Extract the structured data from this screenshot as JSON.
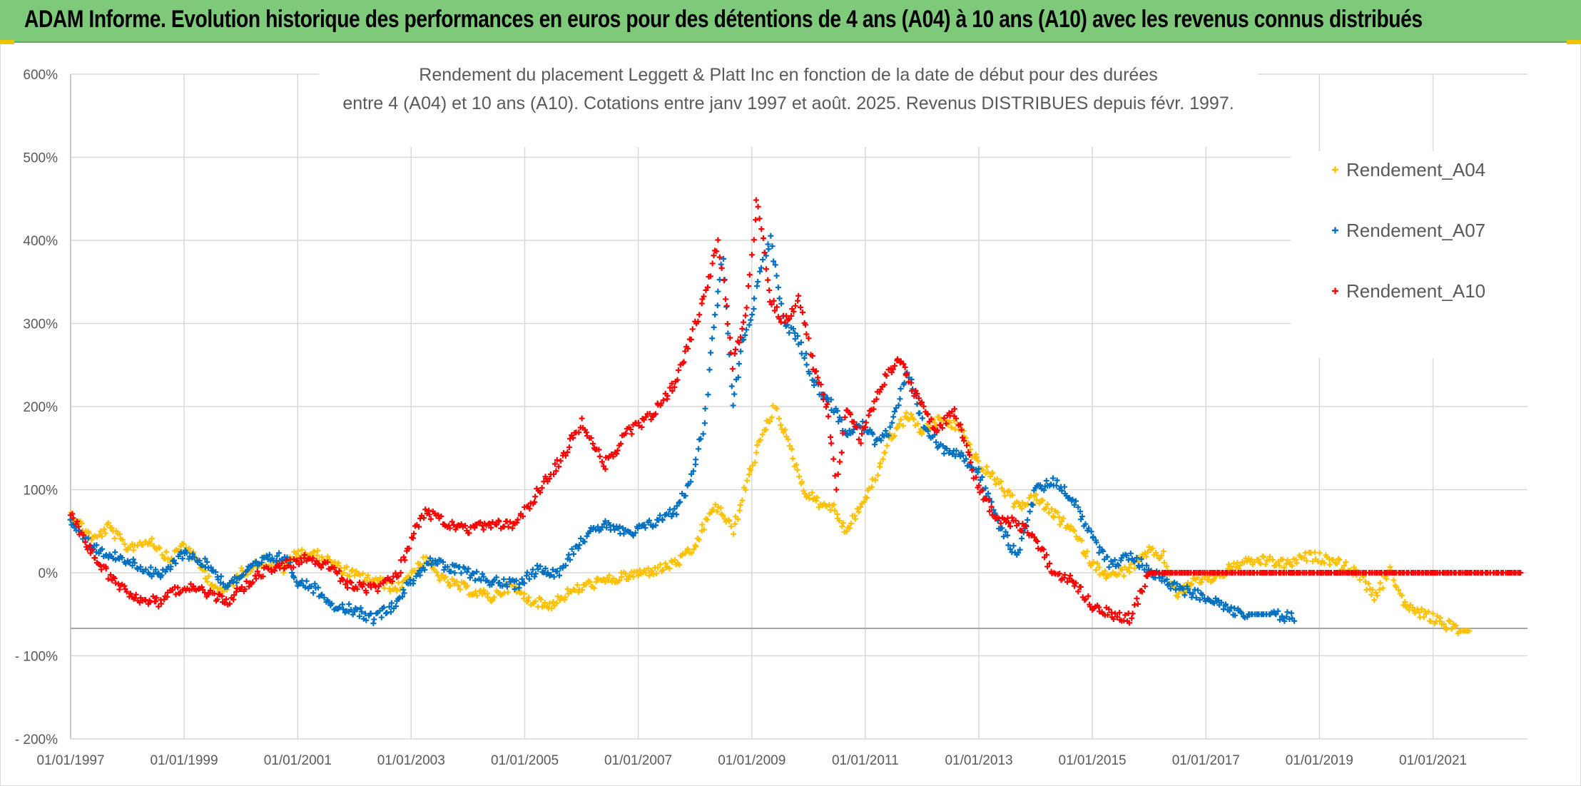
{
  "banner": {
    "title": "ADAM Informe. Evolution historique des performances en euros pour des détentions de 4 ans (A04) à 10 ans (A10) avec les revenus connus distribués"
  },
  "chart_data": {
    "type": "scatter",
    "title_line1": "Rendement du placement Leggett & Platt Inc en fonction de la date de début pour des durées",
    "title_line2": "entre 4 (A04) et 10 ans (A10). Cotations entre janv 1997 et août. 2025. Revenus DISTRIBUES depuis févr. 1997.",
    "xlabel": "",
    "ylabel": "",
    "x_range": [
      "1997-01-01",
      "2022-09-01"
    ],
    "ylim": [
      -200,
      600
    ],
    "y_ticks": [
      {
        "value": 600,
        "label": "600%"
      },
      {
        "value": 500,
        "label": "500%"
      },
      {
        "value": 400,
        "label": "400%"
      },
      {
        "value": 300,
        "label": "300%"
      },
      {
        "value": 200,
        "label": "200%"
      },
      {
        "value": 100,
        "label": "100%"
      },
      {
        "value": 0,
        "label": "0%"
      },
      {
        "value": -100,
        "label": "- 100%"
      },
      {
        "value": -200,
        "label": "- 200%"
      }
    ],
    "x_ticks": [
      "01/01/1997",
      "01/01/1999",
      "01/01/2001",
      "01/01/2003",
      "01/01/2005",
      "01/01/2007",
      "01/01/2009",
      "01/01/2011",
      "01/01/2013",
      "01/01/2015",
      "01/01/2017",
      "01/01/2019",
      "01/01/2021"
    ],
    "reference_line": -67,
    "grid": true,
    "legend_position": "top-right",
    "marker": "+",
    "series": [
      {
        "name": "Rendement_A04",
        "color": "#ffc000",
        "points": [
          [
            "1997-01-01",
            70
          ],
          [
            "1997-06-01",
            40
          ],
          [
            "1997-09-01",
            55
          ],
          [
            "1998-01-01",
            30
          ],
          [
            "1998-06-01",
            40
          ],
          [
            "1998-10-01",
            15
          ],
          [
            "1999-01-01",
            35
          ],
          [
            "1999-06-01",
            -5
          ],
          [
            "1999-09-01",
            -25
          ],
          [
            "2000-01-01",
            0
          ],
          [
            "2000-06-01",
            15
          ],
          [
            "2000-10-01",
            5
          ],
          [
            "2001-01-01",
            25
          ],
          [
            "2001-06-01",
            20
          ],
          [
            "2001-10-01",
            5
          ],
          [
            "2002-02-01",
            -5
          ],
          [
            "2002-06-01",
            -10
          ],
          [
            "2002-10-01",
            -20
          ],
          [
            "2003-01-01",
            0
          ],
          [
            "2003-04-01",
            15
          ],
          [
            "2003-08-01",
            -10
          ],
          [
            "2004-01-01",
            -20
          ],
          [
            "2004-06-01",
            -30
          ],
          [
            "2004-10-01",
            -15
          ],
          [
            "2005-01-01",
            -30
          ],
          [
            "2005-06-01",
            -40
          ],
          [
            "2005-10-01",
            -25
          ],
          [
            "2006-02-01",
            -15
          ],
          [
            "2006-06-01",
            -10
          ],
          [
            "2006-10-01",
            -5
          ],
          [
            "2007-02-01",
            0
          ],
          [
            "2007-06-01",
            5
          ],
          [
            "2007-10-01",
            15
          ],
          [
            "2008-01-01",
            30
          ],
          [
            "2008-04-01",
            70
          ],
          [
            "2008-06-01",
            80
          ],
          [
            "2008-09-01",
            50
          ],
          [
            "2008-12-01",
            110
          ],
          [
            "2009-03-01",
            160
          ],
          [
            "2009-06-01",
            200
          ],
          [
            "2009-09-01",
            150
          ],
          [
            "2009-12-01",
            100
          ],
          [
            "2010-03-01",
            85
          ],
          [
            "2010-06-01",
            80
          ],
          [
            "2010-09-01",
            50
          ],
          [
            "2010-12-01",
            80
          ],
          [
            "2011-03-01",
            110
          ],
          [
            "2011-06-01",
            160
          ],
          [
            "2011-10-01",
            190
          ],
          [
            "2012-01-01",
            170
          ],
          [
            "2012-05-01",
            185
          ],
          [
            "2012-09-01",
            175
          ],
          [
            "2013-01-01",
            130
          ],
          [
            "2013-05-01",
            110
          ],
          [
            "2013-09-01",
            80
          ],
          [
            "2014-01-01",
            90
          ],
          [
            "2014-05-01",
            70
          ],
          [
            "2014-09-01",
            50
          ],
          [
            "2015-01-01",
            10
          ],
          [
            "2015-05-01",
            -5
          ],
          [
            "2015-09-01",
            5
          ],
          [
            "2016-01-01",
            25
          ],
          [
            "2016-04-01",
            20
          ],
          [
            "2016-07-01",
            -30
          ],
          [
            "2016-10-01",
            -10
          ],
          [
            "2017-03-01",
            -5
          ],
          [
            "2017-08-01",
            10
          ],
          [
            "2018-01-01",
            15
          ],
          [
            "2018-06-01",
            10
          ],
          [
            "2018-11-01",
            20
          ],
          [
            "2019-04-01",
            15
          ],
          [
            "2019-09-01",
            0
          ],
          [
            "2020-01-01",
            -30
          ],
          [
            "2020-04-01",
            5
          ],
          [
            "2020-07-01",
            -40
          ],
          [
            "2020-11-01",
            -50
          ],
          [
            "2021-03-01",
            -60
          ],
          [
            "2021-07-01",
            -70
          ],
          [
            "2021-09-01",
            -70
          ]
        ]
      },
      {
        "name": "Rendement_A07",
        "color": "#0070c0",
        "points": [
          [
            "1997-01-01",
            60
          ],
          [
            "1997-06-01",
            30
          ],
          [
            "1997-10-01",
            20
          ],
          [
            "1998-03-01",
            10
          ],
          [
            "1998-08-01",
            -5
          ],
          [
            "1999-01-01",
            25
          ],
          [
            "1999-06-01",
            10
          ],
          [
            "1999-10-01",
            -15
          ],
          [
            "2000-02-01",
            0
          ],
          [
            "2000-06-01",
            15
          ],
          [
            "2000-10-01",
            20
          ],
          [
            "2001-01-01",
            -10
          ],
          [
            "2001-05-01",
            -20
          ],
          [
            "2001-09-01",
            -40
          ],
          [
            "2002-01-01",
            -45
          ],
          [
            "2002-05-01",
            -55
          ],
          [
            "2002-09-01",
            -40
          ],
          [
            "2003-01-01",
            -10
          ],
          [
            "2003-05-01",
            15
          ],
          [
            "2003-09-01",
            5
          ],
          [
            "2004-01-01",
            0
          ],
          [
            "2004-06-01",
            -10
          ],
          [
            "2004-11-01",
            -15
          ],
          [
            "2005-04-01",
            5
          ],
          [
            "2005-08-01",
            0
          ],
          [
            "2006-01-01",
            40
          ],
          [
            "2006-06-01",
            60
          ],
          [
            "2006-11-01",
            45
          ],
          [
            "2007-04-01",
            60
          ],
          [
            "2007-09-01",
            75
          ],
          [
            "2007-12-01",
            110
          ],
          [
            "2008-03-01",
            180
          ],
          [
            "2008-05-01",
            300
          ],
          [
            "2008-07-01",
            380
          ],
          [
            "2008-09-01",
            200
          ],
          [
            "2008-11-01",
            280
          ],
          [
            "2009-01-01",
            310
          ],
          [
            "2009-03-01",
            370
          ],
          [
            "2009-05-01",
            400
          ],
          [
            "2009-08-01",
            300
          ],
          [
            "2009-11-01",
            280
          ],
          [
            "2010-02-01",
            230
          ],
          [
            "2010-06-01",
            200
          ],
          [
            "2010-09-01",
            170
          ],
          [
            "2010-12-01",
            180
          ],
          [
            "2011-03-01",
            160
          ],
          [
            "2011-06-01",
            170
          ],
          [
            "2011-10-01",
            240
          ],
          [
            "2012-01-01",
            180
          ],
          [
            "2012-05-01",
            150
          ],
          [
            "2012-09-01",
            145
          ],
          [
            "2013-01-01",
            120
          ],
          [
            "2013-05-01",
            60
          ],
          [
            "2013-09-01",
            20
          ],
          [
            "2014-01-01",
            100
          ],
          [
            "2014-05-01",
            110
          ],
          [
            "2014-09-01",
            90
          ],
          [
            "2015-01-01",
            40
          ],
          [
            "2015-05-01",
            10
          ],
          [
            "2015-09-01",
            20
          ],
          [
            "2016-02-01",
            0
          ],
          [
            "2016-06-01",
            -15
          ],
          [
            "2016-10-01",
            -25
          ],
          [
            "2017-02-01",
            -30
          ],
          [
            "2017-06-01",
            -45
          ],
          [
            "2017-10-01",
            -50
          ],
          [
            "2018-03-01",
            -50
          ],
          [
            "2018-08-01",
            -55
          ]
        ]
      },
      {
        "name": "Rendement_A10",
        "color": "#ff0000",
        "points": [
          [
            "1997-01-01",
            70
          ],
          [
            "1997-06-01",
            20
          ],
          [
            "1997-10-01",
            -10
          ],
          [
            "1998-03-01",
            -30
          ],
          [
            "1998-08-01",
            -35
          ],
          [
            "1999-01-01",
            -15
          ],
          [
            "1999-06-01",
            -25
          ],
          [
            "1999-10-01",
            -35
          ],
          [
            "2000-03-01",
            -10
          ],
          [
            "2000-07-01",
            5
          ],
          [
            "2000-11-01",
            10
          ],
          [
            "2001-03-01",
            20
          ],
          [
            "2001-08-01",
            5
          ],
          [
            "2001-12-01",
            -15
          ],
          [
            "2002-05-01",
            -20
          ],
          [
            "2002-10-01",
            -5
          ],
          [
            "2003-01-01",
            40
          ],
          [
            "2003-04-01",
            75
          ],
          [
            "2003-08-01",
            60
          ],
          [
            "2004-01-01",
            50
          ],
          [
            "2004-06-01",
            60
          ],
          [
            "2004-11-01",
            55
          ],
          [
            "2005-04-01",
            100
          ],
          [
            "2005-08-01",
            130
          ],
          [
            "2006-01-01",
            180
          ],
          [
            "2006-06-01",
            130
          ],
          [
            "2006-11-01",
            170
          ],
          [
            "2007-04-01",
            190
          ],
          [
            "2007-09-01",
            230
          ],
          [
            "2007-12-01",
            280
          ],
          [
            "2008-03-01",
            330
          ],
          [
            "2008-06-01",
            400
          ],
          [
            "2008-09-01",
            250
          ],
          [
            "2008-12-01",
            320
          ],
          [
            "2009-02-01",
            450
          ],
          [
            "2009-05-01",
            330
          ],
          [
            "2009-08-01",
            300
          ],
          [
            "2009-11-01",
            330
          ],
          [
            "2010-02-01",
            250
          ],
          [
            "2010-05-01",
            200
          ],
          [
            "2010-07-01",
            100
          ],
          [
            "2010-09-01",
            200
          ],
          [
            "2010-12-01",
            160
          ],
          [
            "2011-04-01",
            220
          ],
          [
            "2011-08-01",
            260
          ],
          [
            "2011-12-01",
            210
          ],
          [
            "2012-04-01",
            170
          ],
          [
            "2012-08-01",
            195
          ],
          [
            "2013-01-01",
            100
          ],
          [
            "2013-05-01",
            65
          ],
          [
            "2013-09-01",
            60
          ],
          [
            "2014-01-01",
            40
          ],
          [
            "2014-05-01",
            0
          ],
          [
            "2014-09-01",
            -10
          ],
          [
            "2015-01-01",
            -40
          ],
          [
            "2015-05-01",
            -50
          ],
          [
            "2015-09-01",
            -55
          ],
          [
            "2016-01-01",
            0
          ],
          [
            "2018-01-01",
            0
          ],
          [
            "2020-01-01",
            0
          ],
          [
            "2022-08-01",
            0
          ]
        ]
      }
    ]
  }
}
